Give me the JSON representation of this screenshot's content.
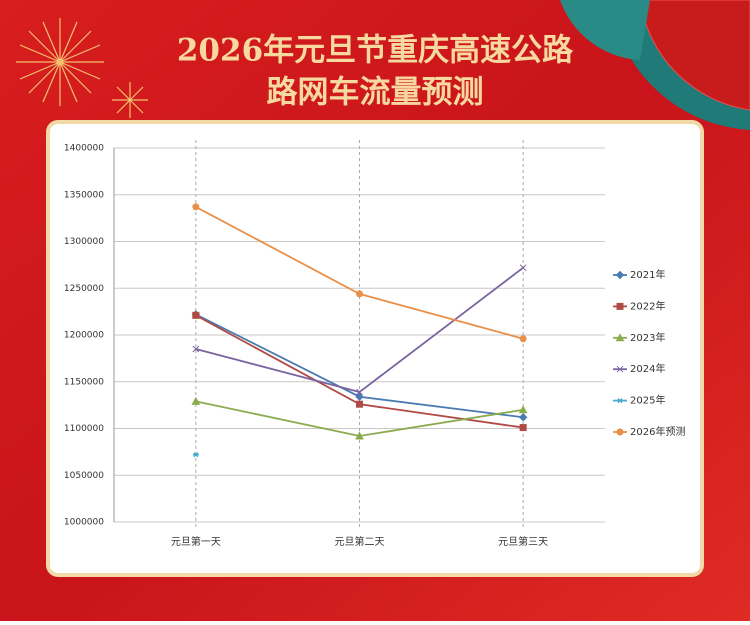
{
  "chart_data": {
    "type": "line",
    "title": [
      "2026年元旦节重庆高速公路",
      "路网车流量预测"
    ],
    "categories": [
      "元旦第一天",
      "元旦第二天",
      "元旦第三天"
    ],
    "series": [
      {
        "name": "2021年",
        "color": "#4a7ab0",
        "marker": "diamond",
        "values": [
          1222000,
          1134000,
          1112000
        ]
      },
      {
        "name": "2022年",
        "color": "#b04a45",
        "marker": "square",
        "values": [
          1221000,
          1126000,
          1101000
        ]
      },
      {
        "name": "2023年",
        "color": "#8aac4e",
        "marker": "triangle",
        "values": [
          1129000,
          1092000,
          1120000
        ]
      },
      {
        "name": "2024年",
        "color": "#7a64a0",
        "marker": "x",
        "values": [
          1185000,
          1139000,
          1272000
        ]
      },
      {
        "name": "2025年",
        "color": "#4aaccc",
        "marker": "star",
        "values": [
          1072000,
          null,
          null
        ]
      },
      {
        "name": "2026年预测",
        "color": "#e8904a",
        "marker": "circle",
        "values": [
          1337000,
          1244000,
          1196000
        ]
      }
    ],
    "ylim": [
      1000000,
      1400000
    ],
    "yticks": [
      1000000,
      1050000,
      1100000,
      1150000,
      1200000,
      1250000,
      1300000,
      1350000,
      1400000
    ],
    "grid": true,
    "legend": "right"
  }
}
